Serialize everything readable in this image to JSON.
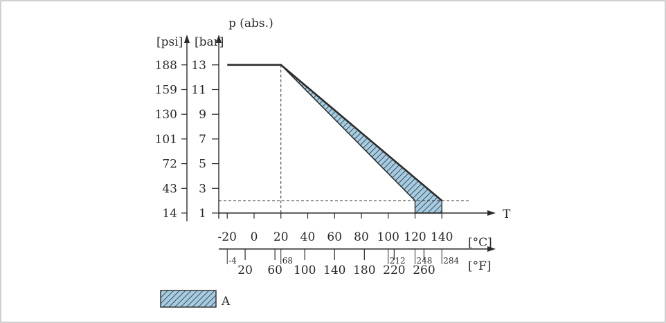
{
  "chart_data": {
    "type": "area",
    "title": "",
    "y_axis_label": "p (abs.)",
    "x_axis_label": "T",
    "y_units": {
      "bar": "[bar]",
      "psi": "[psi]"
    },
    "x_units": {
      "celsius": "[°C]",
      "fahrenheit": "[°F]"
    },
    "bar_ticks": [
      1,
      3,
      5,
      7,
      9,
      11,
      13
    ],
    "psi_ticks": [
      14,
      43,
      72,
      101,
      130,
      159,
      188
    ],
    "celsius_ticks": [
      -20,
      0,
      20,
      40,
      60,
      80,
      100,
      120,
      140
    ],
    "fahrenheit_ticks_lower": [
      20,
      60,
      100,
      140,
      180,
      220,
      260
    ],
    "fahrenheit_ticks_upper": [
      "-4",
      "68",
      "212",
      "248",
      "284"
    ],
    "xlim_c": [
      -20,
      140
    ],
    "ylim_bar": [
      1,
      13
    ],
    "series": [
      {
        "name": "",
        "x": [
          -20,
          20,
          140
        ],
        "y": [
          13,
          13,
          2
        ]
      },
      {
        "name": "",
        "x": [
          20,
          120
        ],
        "y": [
          13,
          2
        ]
      }
    ],
    "reference_lines": [
      {
        "x": 20
      },
      {
        "y": 2
      }
    ],
    "legend": [
      {
        "label": "A",
        "style": "hatched"
      }
    ],
    "colors": {
      "fill": "#a7cbe0",
      "line": "#2b2b2b"
    }
  }
}
